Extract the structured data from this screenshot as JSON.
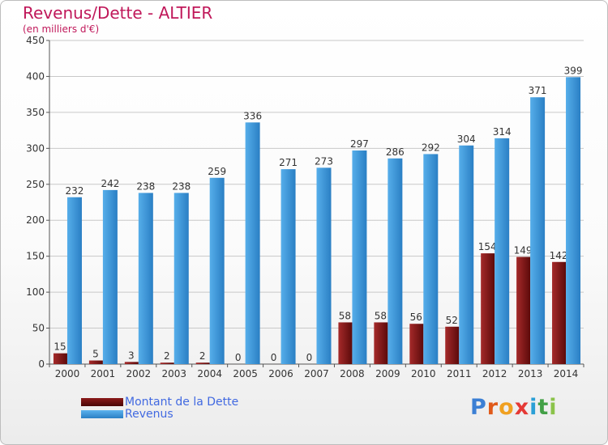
{
  "chart_data": {
    "type": "bar",
    "title": "Revenus/Dette - ALTIER",
    "subtitle": "(en milliers d'€)",
    "categories": [
      "2000",
      "2001",
      "2002",
      "2003",
      "2004",
      "2005",
      "2006",
      "2007",
      "2008",
      "2009",
      "2010",
      "2011",
      "2012",
      "2013",
      "2014"
    ],
    "series": [
      {
        "name": "Montant de la Dette",
        "color": "#8b1010",
        "values": [
          15,
          5,
          3,
          2,
          2,
          0,
          0,
          0,
          58,
          58,
          56,
          52,
          154,
          149,
          142
        ]
      },
      {
        "name": "Revenus",
        "color": "#3d95d8",
        "values": [
          232,
          242,
          238,
          238,
          259,
          336,
          271,
          273,
          297,
          286,
          292,
          304,
          314,
          371,
          399
        ]
      }
    ],
    "ylim": [
      0,
      450
    ],
    "yticks": [
      0,
      50,
      100,
      150,
      200,
      250,
      300,
      350,
      400,
      450
    ],
    "grid": true,
    "legend_position": "bottom-left"
  },
  "logo": {
    "text": "Proxiti",
    "colors": [
      "#3b7fd4",
      "#e05a1a",
      "#f0a020",
      "#e53935",
      "#2a9fd6",
      "#43a047",
      "#8bc34a"
    ]
  }
}
